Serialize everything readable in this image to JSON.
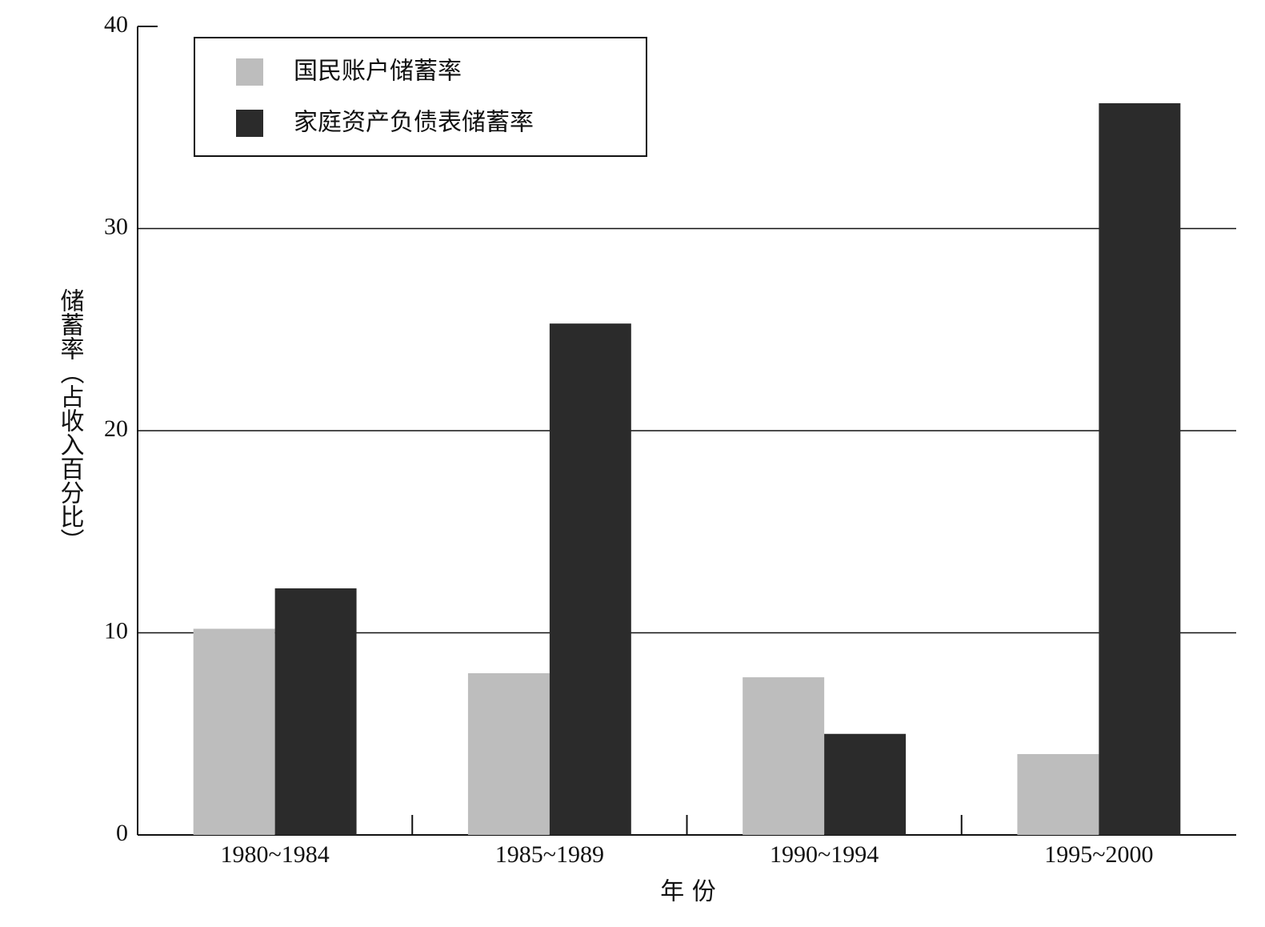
{
  "chart_data": {
    "type": "bar",
    "x_label": "年 份",
    "y_label": "储蓄率（占收入百分比）",
    "categories": [
      "1980~1984",
      "1985~1989",
      "1990~1994",
      "1995~2000"
    ],
    "series": [
      {
        "name": "国民账户储蓄率",
        "color": "#bdbdbd",
        "values": [
          10.2,
          8.0,
          7.8,
          4.0
        ]
      },
      {
        "name": "家庭资产负债表储蓄率",
        "color": "#2b2b2b",
        "values": [
          12.2,
          25.3,
          5.0,
          36.2
        ]
      }
    ],
    "ylim": [
      0,
      40
    ],
    "yticks": [
      0,
      10,
      20,
      30,
      40
    ],
    "grid": true
  }
}
